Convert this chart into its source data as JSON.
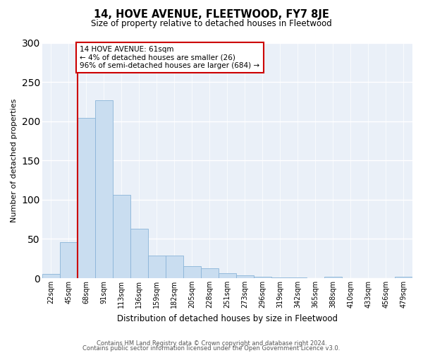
{
  "title": "14, HOVE AVENUE, FLEETWOOD, FY7 8JE",
  "subtitle": "Size of property relative to detached houses in Fleetwood",
  "xlabel": "Distribution of detached houses by size in Fleetwood",
  "ylabel": "Number of detached properties",
  "bar_color": "#c9ddf0",
  "bar_edge_color": "#8ab4d8",
  "background_color": "#eaf0f8",
  "grid_color": "#ffffff",
  "categories": [
    "22sqm",
    "45sqm",
    "68sqm",
    "91sqm",
    "113sqm",
    "136sqm",
    "159sqm",
    "182sqm",
    "205sqm",
    "228sqm",
    "251sqm",
    "273sqm",
    "296sqm",
    "319sqm",
    "342sqm",
    "365sqm",
    "388sqm",
    "410sqm",
    "433sqm",
    "456sqm",
    "479sqm"
  ],
  "values": [
    5,
    46,
    204,
    227,
    106,
    63,
    29,
    29,
    15,
    13,
    6,
    4,
    2,
    1,
    1,
    0,
    2,
    0,
    0,
    0,
    2
  ],
  "marker_bar_index": 2,
  "marker_label": "14 HOVE AVENUE: 61sqm",
  "marker_line1": "← 4% of detached houses are smaller (26)",
  "marker_line2": "96% of semi-detached houses are larger (684) →",
  "marker_color": "#cc0000",
  "ylim": [
    0,
    300
  ],
  "yticks": [
    0,
    50,
    100,
    150,
    200,
    250,
    300
  ],
  "footer_line1": "Contains HM Land Registry data © Crown copyright and database right 2024.",
  "footer_line2": "Contains public sector information licensed under the Open Government Licence v3.0."
}
